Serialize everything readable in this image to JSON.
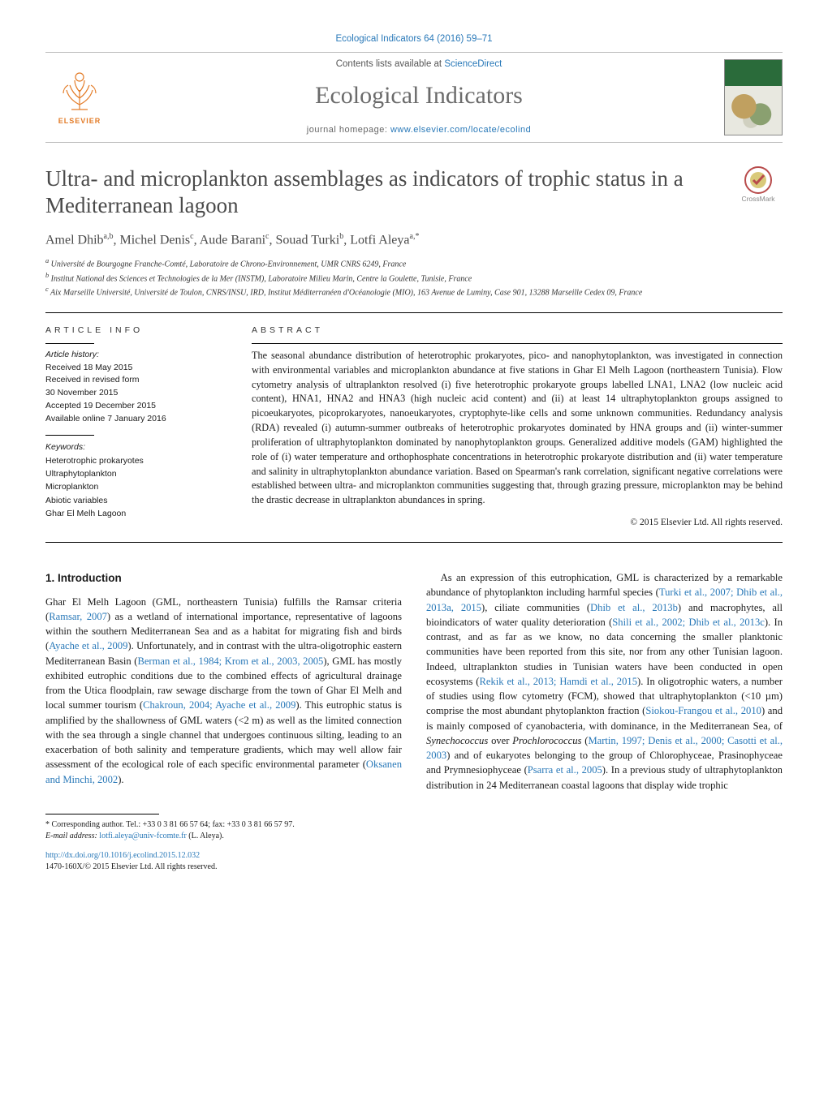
{
  "header": {
    "citation": "Ecological Indicators 64 (2016) 59–71",
    "contents_prefix": "Contents lists available at ",
    "contents_link": "ScienceDirect",
    "journal": "Ecological Indicators",
    "homepage_prefix": "journal homepage: ",
    "homepage_url": "www.elsevier.com/locate/ecolind",
    "publisher_word": "ELSEVIER"
  },
  "article": {
    "title": "Ultra- and microplankton assemblages as indicators of trophic status in a Mediterranean lagoon",
    "crossmark_label": "CrossMark",
    "authors_html": "Amel Dhib<sup>a,b</sup>, Michel Denis<sup>c</sup>, Aude Barani<sup>c</sup>, Souad Turki<sup>b</sup>, Lotfi Aleya<sup>a,*</sup>",
    "affiliations": {
      "a": "Université de Bourgogne Franche-Comté, Laboratoire de Chrono-Environnement, UMR CNRS 6249, France",
      "b": "Institut National des Sciences et Technologies de la Mer (INSTM), Laboratoire Milieu Marin, Centre la Goulette, Tunisie, France",
      "c": "Aix Marseille Université, Université de Toulon, CNRS/INSU, IRD, Institut Méditerranéen d'Océanologie (MIO), 163 Avenue de Luminy, Case 901, 13288 Marseille Cedex 09, France"
    }
  },
  "meta": {
    "info_head": "ARTICLE INFO",
    "abs_head": "ABSTRACT",
    "history_label": "Article history:",
    "history": [
      "Received 18 May 2015",
      "Received in revised form",
      "30 November 2015",
      "Accepted 19 December 2015",
      "Available online 7 January 2016"
    ],
    "kw_label": "Keywords:",
    "keywords": [
      "Heterotrophic prokaryotes",
      "Ultraphytoplankton",
      "Microplankton",
      "Abiotic variables",
      "Ghar El Melh Lagoon"
    ]
  },
  "abstract": {
    "text": "The seasonal abundance distribution of heterotrophic prokaryotes, pico- and nanophytoplankton, was investigated in connection with environmental variables and microplankton abundance at five stations in Ghar El Melh Lagoon (northeastern Tunisia). Flow cytometry analysis of ultraplankton resolved (i) five heterotrophic prokaryote groups labelled LNA1, LNA2 (low nucleic acid content), HNA1, HNA2 and HNA3 (high nucleic acid content) and (ii) at least 14 ultraphytoplankton groups assigned to picoeukaryotes, picoprokaryotes, nanoeukaryotes, cryptophyte-like cells and some unknown communities. Redundancy analysis (RDA) revealed (i) autumn-summer outbreaks of heterotrophic prokaryotes dominated by HNA groups and (ii) winter-summer proliferation of ultraphytoplankton dominated by nanophytoplankton groups. Generalized additive models (GAM) highlighted the role of (i) water temperature and orthophosphate concentrations in heterotrophic prokaryote distribution and (ii) water temperature and salinity in ultraphytoplankton abundance variation. Based on Spearman's rank correlation, significant negative correlations were established between ultra- and microplankton communities suggesting that, through grazing pressure, microplankton may be behind the drastic decrease in ultraplankton abundances in spring.",
    "copyright": "© 2015 Elsevier Ltd. All rights reserved."
  },
  "body": {
    "heading": "1. Introduction",
    "p1_a": "Ghar El Melh Lagoon (GML, northeastern Tunisia) fulfills the Ramsar criteria (",
    "p1_l1": "Ramsar, 2007",
    "p1_b": ") as a wetland of international importance, representative of lagoons within the southern Mediterranean Sea and as a habitat for migrating fish and birds (",
    "p1_l2": "Ayache et al., 2009",
    "p1_c": "). Unfortunately, and in contrast with the ultra-oligotrophic eastern Mediterranean Basin (",
    "p1_l3": "Berman et al., 1984; Krom et al., 2003, 2005",
    "p1_d": "), GML has mostly exhibited eutrophic conditions due to the combined effects of agricultural drainage from the Utica floodplain, raw sewage discharge from the town of Ghar El Melh and local summer tourism (",
    "p1_l4": "Chakroun, 2004; Ayache et al., 2009",
    "p1_e": "). This eutrophic status is amplified by the shallowness of GML waters (<2 m) as well as the limited connection with the sea through a single channel that undergoes continuous silting, leading to an exacerbation of both salinity and temperature gradients, which may well allow fair assessment of the ecological role of each specific environmental parameter (",
    "p1_l5": "Oksanen and Minchi, 2002",
    "p1_f": ").",
    "p2_a": "As an expression of this eutrophication, GML is characterized by a remarkable abundance of phytoplankton including harmful species (",
    "p2_l1": "Turki et al., 2007; Dhib et al., 2013a, 2015",
    "p2_b": "), ciliate communities (",
    "p2_l2": "Dhib et al., 2013b",
    "p2_c": ") and macrophytes, all bioindicators of water quality deterioration (",
    "p2_l3": "Shili et al., 2002; Dhib et al., 2013c",
    "p2_d": "). In contrast, and as far as we know, no data concerning the smaller planktonic communities have been reported from this site, nor from any other Tunisian lagoon. Indeed, ultraplankton studies in Tunisian waters have been conducted in open ecosystems (",
    "p2_l4": "Rekik et al., 2013; Hamdi et al., 2015",
    "p2_e": "). In oligotrophic waters, a number of studies using flow cytometry (FCM), showed that ultraphytoplankton (<10 µm) comprise the most abundant phytoplankton fraction (",
    "p2_l5": "Siokou-Frangou et al., 2010",
    "p2_f": ") and is mainly composed of cyanobacteria, with dominance, in the Mediterranean Sea, of ",
    "p2_sp1": "Synechococcus",
    "p2_g": " over ",
    "p2_sp2": "Prochlorococcus",
    "p2_h": " (",
    "p2_l6": "Martin, 1997; Denis et al., 2000; Casotti et al., 2003",
    "p2_i": ") and of eukaryotes belonging to the group of Chlorophyceae, Prasinophyceae and Prymnesiophyceae (",
    "p2_l7": "Psarra et al., 2005",
    "p2_j": "). In a previous study of ultraphytoplankton distribution in 24 Mediterranean coastal lagoons that display wide trophic"
  },
  "footer": {
    "corr": "* Corresponding author. Tel.: +33 0 3 81 66 57 64; fax: +33 0 3 81 66 57 97.",
    "email_label": "E-mail address: ",
    "email": "lotfi.aleya@univ-fcomte.fr",
    "email_suffix": " (L. Aleya).",
    "doi_url": "http://dx.doi.org/10.1016/j.ecolind.2015.12.032",
    "issn_line": "1470-160X/© 2015 Elsevier Ltd. All rights reserved."
  },
  "colors": {
    "link": "#2878b8",
    "journal_grey": "#6b6b6b",
    "title_grey": "#4a4a4a",
    "elsevier_orange": "#e37c28"
  }
}
